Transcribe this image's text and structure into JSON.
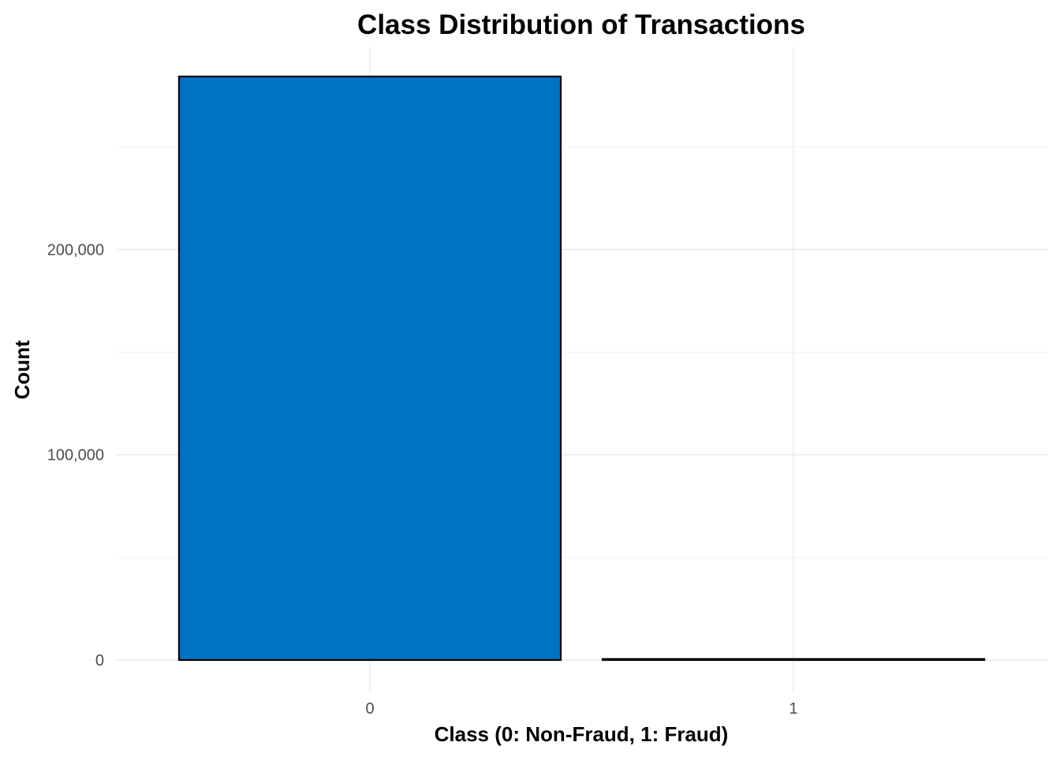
{
  "chart_data": {
    "type": "bar",
    "title": "Class Distribution of Transactions",
    "xlabel": "Class (0: Non-Fraud, 1: Fraud)",
    "ylabel": "Count",
    "categories": [
      "0",
      "1"
    ],
    "values": [
      284315,
      492
    ],
    "ylim": [
      0,
      298535
    ],
    "yticks": [
      0,
      100000,
      200000
    ],
    "ytick_labels": [
      "0",
      "100,000",
      "200,000"
    ],
    "y_minor_ticks": [
      50000,
      150000,
      250000
    ],
    "grid": true,
    "legend": "none",
    "colors": {
      "bar_fill": "#0072C4",
      "bar_outline": "#000000",
      "grid": "#ebebeb",
      "tick_text": "#4d4d4d",
      "text": "#000000"
    }
  }
}
